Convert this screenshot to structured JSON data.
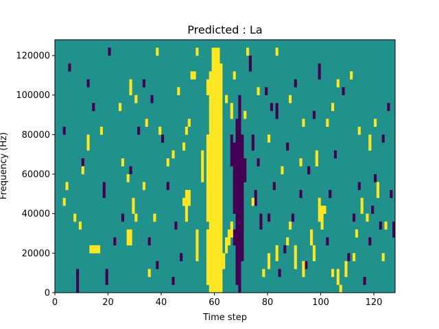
{
  "chart_data": {
    "type": "heatmap",
    "title": "Predicted : La",
    "xlabel": "Time step",
    "ylabel": "Frequency (Hz)",
    "xlim": [
      0,
      128
    ],
    "ylim": [
      0,
      128000
    ],
    "xticks": [
      0,
      20,
      40,
      60,
      80,
      100,
      120
    ],
    "yticks": [
      0,
      20000,
      40000,
      60000,
      80000,
      100000,
      120000
    ],
    "grid": false,
    "legend": "none",
    "colormap": {
      "low": "#440154",
      "mid": "#21918c",
      "high": "#fde725"
    },
    "n_time_steps": 128,
    "n_frequency_bins": 32,
    "background_value": "mid",
    "high_segments": [
      [
        59,
        0,
        31
      ],
      [
        60,
        0,
        31
      ],
      [
        61,
        0,
        31
      ],
      [
        62,
        0,
        29
      ],
      [
        58,
        0,
        28
      ],
      [
        57,
        1,
        8
      ],
      [
        57,
        9,
        20
      ],
      [
        57,
        25,
        27
      ],
      [
        53,
        4,
        8
      ],
      [
        49,
        9,
        13
      ],
      [
        50,
        11,
        13
      ],
      [
        48,
        11,
        12
      ],
      [
        48,
        18,
        19
      ],
      [
        49,
        20,
        21
      ],
      [
        50,
        21,
        22
      ],
      [
        55,
        14,
        18
      ],
      [
        52,
        27,
        28
      ],
      [
        51,
        27,
        28
      ],
      [
        13,
        5,
        6
      ],
      [
        14,
        5,
        6
      ],
      [
        15,
        5,
        6
      ],
      [
        16,
        5,
        6
      ],
      [
        9,
        8,
        9
      ],
      [
        7,
        9,
        10
      ],
      [
        27,
        6,
        8
      ],
      [
        28,
        6,
        8
      ],
      [
        29,
        10,
        12
      ],
      [
        30,
        9,
        10
      ],
      [
        35,
        2,
        3
      ],
      [
        33,
        13,
        14
      ],
      [
        42,
        16,
        17
      ],
      [
        37,
        9,
        10
      ],
      [
        39,
        20,
        21
      ],
      [
        38,
        30,
        31
      ],
      [
        3,
        11,
        12
      ],
      [
        4,
        13,
        14
      ],
      [
        10,
        15,
        16
      ],
      [
        12,
        18,
        20
      ],
      [
        17,
        20,
        21
      ],
      [
        25,
        16,
        17
      ],
      [
        27,
        14,
        15
      ],
      [
        30,
        24,
        25
      ],
      [
        24,
        23,
        24
      ],
      [
        28,
        25,
        27
      ],
      [
        34,
        21,
        22
      ],
      [
        44,
        17,
        18
      ],
      [
        46,
        25,
        26
      ],
      [
        53,
        30,
        31
      ],
      [
        63,
        3,
        5
      ],
      [
        64,
        5,
        7
      ],
      [
        65,
        6,
        8
      ],
      [
        66,
        7,
        9
      ],
      [
        64,
        24,
        25
      ],
      [
        67,
        27,
        28
      ],
      [
        66,
        22,
        24
      ],
      [
        78,
        2,
        3
      ],
      [
        80,
        3,
        5
      ],
      [
        83,
        4,
        6
      ],
      [
        87,
        6,
        7
      ],
      [
        88,
        8,
        9
      ],
      [
        90,
        3,
        6
      ],
      [
        93,
        2,
        4
      ],
      [
        96,
        6,
        8
      ],
      [
        97,
        4,
        6
      ],
      [
        99,
        9,
        12
      ],
      [
        100,
        8,
        11
      ],
      [
        101,
        10,
        11
      ],
      [
        104,
        2,
        3
      ],
      [
        106,
        1,
        3
      ],
      [
        107,
        0,
        1
      ],
      [
        109,
        2,
        4
      ],
      [
        112,
        4,
        5
      ],
      [
        113,
        7,
        8
      ],
      [
        115,
        10,
        12
      ],
      [
        117,
        9,
        10
      ],
      [
        121,
        12,
        14
      ],
      [
        123,
        4,
        5
      ],
      [
        124,
        8,
        9
      ],
      [
        98,
        16,
        18
      ],
      [
        102,
        21,
        22
      ],
      [
        104,
        23,
        24
      ],
      [
        106,
        26,
        27
      ],
      [
        111,
        27,
        28
      ],
      [
        114,
        20,
        21
      ],
      [
        118,
        18,
        20
      ],
      [
        120,
        21,
        22
      ],
      [
        93,
        21,
        22
      ],
      [
        92,
        16,
        17
      ],
      [
        88,
        24,
        25
      ],
      [
        83,
        30,
        31
      ],
      [
        85,
        15,
        16
      ],
      [
        80,
        19,
        20
      ],
      [
        76,
        25,
        26
      ],
      [
        74,
        11,
        12
      ],
      [
        72,
        30,
        31
      ],
      [
        71,
        22,
        23
      ]
    ],
    "low_segments": [
      [
        69,
        0,
        25
      ],
      [
        68,
        1,
        22
      ],
      [
        70,
        4,
        20
      ],
      [
        67,
        6,
        8
      ],
      [
        67,
        10,
        19
      ],
      [
        66,
        16,
        20
      ],
      [
        71,
        14,
        17
      ],
      [
        75,
        11,
        13
      ],
      [
        77,
        8,
        10
      ],
      [
        76,
        16,
        17
      ],
      [
        79,
        25,
        26
      ],
      [
        81,
        23,
        24
      ],
      [
        73,
        28,
        30
      ],
      [
        74,
        18,
        20
      ],
      [
        8,
        0,
        3
      ],
      [
        19,
        1,
        3
      ],
      [
        22,
        6,
        7
      ],
      [
        25,
        9,
        10
      ],
      [
        28,
        15,
        16
      ],
      [
        31,
        20,
        21
      ],
      [
        33,
        26,
        27
      ],
      [
        36,
        24,
        25
      ],
      [
        40,
        19,
        20
      ],
      [
        42,
        13,
        14
      ],
      [
        45,
        8,
        9
      ],
      [
        47,
        4,
        5
      ],
      [
        44,
        1,
        2
      ],
      [
        38,
        3,
        4
      ],
      [
        35,
        6,
        7
      ],
      [
        10,
        16,
        17
      ],
      [
        12,
        26,
        27
      ],
      [
        14,
        23,
        24
      ],
      [
        18,
        12,
        14
      ],
      [
        20,
        30,
        31
      ],
      [
        3,
        20,
        21
      ],
      [
        5,
        28,
        29
      ],
      [
        84,
        2,
        3
      ],
      [
        86,
        5,
        6
      ],
      [
        89,
        9,
        10
      ],
      [
        92,
        12,
        13
      ],
      [
        94,
        3,
        4
      ],
      [
        95,
        15,
        16
      ],
      [
        97,
        22,
        23
      ],
      [
        99,
        27,
        29
      ],
      [
        102,
        6,
        7
      ],
      [
        103,
        12,
        13
      ],
      [
        105,
        17,
        18
      ],
      [
        108,
        25,
        26
      ],
      [
        110,
        4,
        5
      ],
      [
        112,
        9,
        10
      ],
      [
        114,
        13,
        14
      ],
      [
        116,
        1,
        2
      ],
      [
        118,
        6,
        7
      ],
      [
        119,
        10,
        11
      ],
      [
        120,
        14,
        15
      ],
      [
        122,
        8,
        9
      ],
      [
        123,
        19,
        20
      ],
      [
        125,
        23,
        24
      ],
      [
        126,
        12,
        13
      ],
      [
        127,
        7,
        9
      ],
      [
        90,
        26,
        27
      ],
      [
        87,
        18,
        19
      ],
      [
        83,
        22,
        24
      ],
      [
        82,
        13,
        14
      ],
      [
        80,
        9,
        10
      ]
    ]
  }
}
